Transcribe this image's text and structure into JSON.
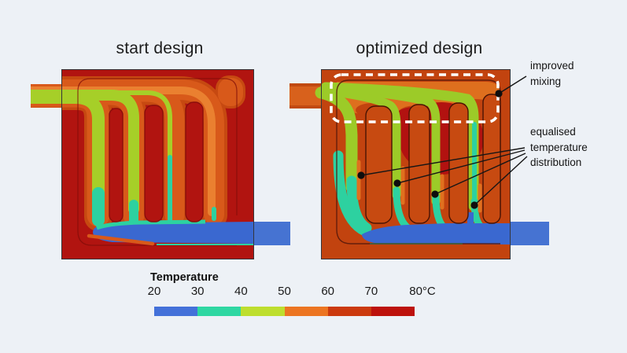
{
  "figure": {
    "type": "cfd-temperature-comparison",
    "description": "Temperature contour plots of a start design and an optimized design of a mixing manifold"
  },
  "titles": {
    "left": "start design",
    "right": "optimized design"
  },
  "annotations": {
    "improved": {
      "line1": "improved",
      "line2": "mixing"
    },
    "equalised": {
      "line1": "equalised",
      "line2": "temperature",
      "line3": "distribution"
    }
  },
  "legend": {
    "title": "Temperature",
    "ticks": [
      "20",
      "30",
      "40",
      "50",
      "60",
      "70",
      "80°C"
    ],
    "segment_colors": [
      "#4471d9",
      "#2fd7a2",
      "#bede2e",
      "#ec7522",
      "#cb3a0e",
      "#bd120c"
    ],
    "scale": {
      "min": 20,
      "max": 80,
      "step": 10,
      "unit": "°C"
    }
  }
}
